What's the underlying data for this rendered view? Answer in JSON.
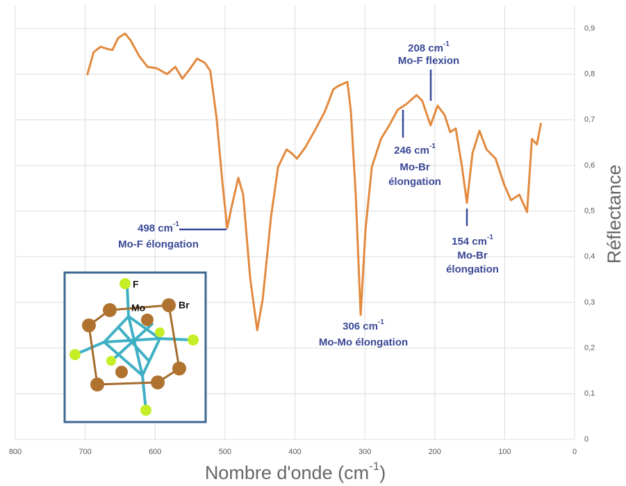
{
  "chart_data": {
    "type": "line",
    "x_label": {
      "text": "Nombre d'onde (cm",
      "superscript": "-1",
      "closing": ")"
    },
    "y_label": "Réflectance",
    "xlim": [
      800,
      0
    ],
    "ylim": [
      0,
      0.95
    ],
    "xticks": [
      800,
      700,
      600,
      500,
      400,
      300,
      200,
      100,
      0
    ],
    "yticks": [
      0,
      {
        "value": 0.1,
        "label": "0,1"
      },
      {
        "value": 0.2,
        "label": "0,2"
      },
      {
        "value": 0.3,
        "label": "0,3"
      },
      {
        "value": 0.4,
        "label": "0,4"
      },
      {
        "value": 0.5,
        "label": "0,5"
      },
      {
        "value": 0.6,
        "label": "0,6"
      },
      {
        "value": 0.7,
        "label": "0,7"
      },
      {
        "value": 0.8,
        "label": "0,8"
      },
      {
        "value": 0.9,
        "label": "0,9"
      }
    ],
    "grid": true,
    "color": "#e2893d",
    "x": [
      697,
      688,
      678,
      668,
      661,
      653,
      643,
      635,
      623,
      611,
      598,
      583,
      571,
      561,
      551,
      540,
      529,
      521,
      512,
      504,
      497,
      491,
      481,
      474,
      464,
      454,
      446,
      434,
      424,
      412,
      405,
      397,
      385,
      370,
      357,
      345,
      337,
      325,
      320,
      313,
      306,
      299,
      290,
      277,
      265,
      253,
      241,
      226,
      218,
      206,
      196,
      186,
      178,
      170,
      161,
      154,
      146,
      136,
      126,
      113,
      101,
      91,
      79,
      68,
      61,
      54,
      48
    ],
    "values": [
      0.798,
      0.848,
      0.86,
      0.855,
      0.853,
      0.879,
      0.889,
      0.874,
      0.84,
      0.816,
      0.813,
      0.8,
      0.816,
      0.79,
      0.81,
      0.834,
      0.825,
      0.807,
      0.703,
      0.566,
      0.463,
      0.506,
      0.573,
      0.536,
      0.353,
      0.239,
      0.308,
      0.49,
      0.597,
      0.635,
      0.627,
      0.615,
      0.64,
      0.681,
      0.719,
      0.767,
      0.775,
      0.783,
      0.719,
      0.536,
      0.273,
      0.46,
      0.597,
      0.658,
      0.688,
      0.722,
      0.734,
      0.754,
      0.742,
      0.688,
      0.731,
      0.711,
      0.673,
      0.681,
      0.597,
      0.518,
      0.627,
      0.676,
      0.635,
      0.615,
      0.559,
      0.524,
      0.536,
      0.498,
      0.658,
      0.646,
      0.693
    ],
    "annotations": [
      {
        "head": "498 cm",
        "superscript": "-1",
        "lines": [
          "Mo-F élongation"
        ]
      },
      {
        "head": "208 cm",
        "superscript": "-1",
        "lines": [
          "Mo-F flexion"
        ]
      },
      {
        "head": "246 cm",
        "superscript": "-1",
        "lines": [
          "Mo-Br",
          "élongation"
        ]
      },
      {
        "head": "306 cm",
        "superscript": "-1",
        "lines": [
          "Mo-Mo élongation"
        ]
      },
      {
        "head": "154 cm",
        "superscript": "-1",
        "lines": [
          "Mo-Br",
          "élongation"
        ]
      }
    ],
    "inset_labels": [
      "F",
      "Mo",
      "Br"
    ]
  }
}
